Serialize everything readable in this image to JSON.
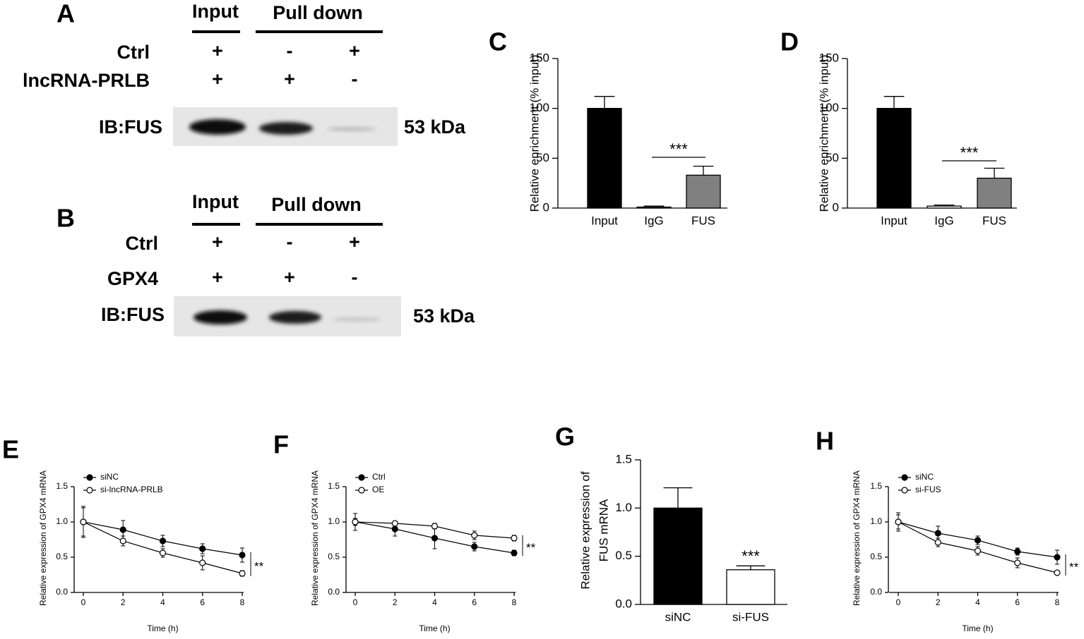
{
  "blots": [
    {
      "panel_label": "A",
      "input": "Input",
      "pull_down": "Pull down",
      "rows": [
        {
          "label": "Ctrl",
          "marks": [
            "+",
            "-",
            "+"
          ]
        },
        {
          "label": "lncRNA-PRLB",
          "marks": [
            "+",
            "+",
            "-"
          ]
        }
      ],
      "antibody": "IB:FUS",
      "size": "53 kDa"
    },
    {
      "panel_label": "B",
      "input": "Input",
      "pull_down": "Pull down",
      "rows": [
        {
          "label": "Ctrl",
          "marks": [
            "+",
            "-",
            "+"
          ]
        },
        {
          "label": "GPX4",
          "marks": [
            "+",
            "+",
            "-"
          ]
        }
      ],
      "antibody": "IB:FUS",
      "size": "53 kDa"
    }
  ],
  "chart_data": [
    {
      "type": "bar",
      "panel_label": "C",
      "ylabel": "Relative enrichment (% input)",
      "categories": [
        "Input",
        "IgG",
        "FUS"
      ],
      "values": [
        100,
        1,
        33
      ],
      "errors": [
        12,
        1,
        9
      ],
      "colors": [
        "#000000",
        "#ffffff",
        "#808080"
      ],
      "ylim": [
        0,
        150
      ],
      "yticks": [
        0,
        50,
        100,
        150
      ],
      "annotation": "***"
    },
    {
      "type": "bar",
      "panel_label": "D",
      "ylabel": "Relative enrichment (% input)",
      "categories": [
        "Input",
        "IgG",
        "FUS"
      ],
      "values": [
        100,
        2,
        30
      ],
      "errors": [
        12,
        1,
        10
      ],
      "colors": [
        "#000000",
        "#ffffff",
        "#808080"
      ],
      "ylim": [
        0,
        150
      ],
      "yticks": [
        0,
        50,
        100,
        150
      ],
      "annotation": "***"
    },
    {
      "type": "line",
      "panel_label": "E",
      "ylabel": "Relative expression of GPX4 mRNA",
      "xlabel": "Time (h)",
      "x": [
        0,
        2,
        4,
        6,
        8
      ],
      "xlim": [
        0,
        8
      ],
      "xticks": [
        0,
        2,
        4,
        6,
        8
      ],
      "ylim": [
        0,
        1.5
      ],
      "yticks": [
        {
          "value": 0,
          "label": "0.0"
        },
        0.5,
        {
          "value": 1,
          "label": "1.0"
        },
        1.5
      ],
      "series": [
        {
          "name": "siNC",
          "color": "#000000",
          "marker": "filled",
          "values": [
            1.0,
            0.89,
            0.73,
            0.62,
            0.53
          ],
          "errors": [
            0.22,
            0.13,
            0.08,
            0.07,
            0.1
          ]
        },
        {
          "name": "si-lncRNA-PRLB",
          "color": "#000000",
          "marker": "open",
          "values": [
            1.0,
            0.73,
            0.56,
            0.42,
            0.27
          ],
          "errors": [
            0.2,
            0.07,
            0.06,
            0.1,
            0.04
          ]
        }
      ],
      "annotation": "**"
    },
    {
      "type": "line",
      "panel_label": "F",
      "ylabel": "Relative expression of GPX4 mRNA",
      "xlabel": "Time (h)",
      "x": [
        0,
        2,
        4,
        6,
        8
      ],
      "xlim": [
        0,
        8
      ],
      "xticks": [
        0,
        2,
        4,
        6,
        8
      ],
      "ylim": [
        0,
        1.5
      ],
      "yticks": [
        {
          "value": 0,
          "label": "0.0"
        },
        0.5,
        {
          "value": 1,
          "label": "1.0"
        },
        1.5
      ],
      "series": [
        {
          "name": "Ctrl",
          "color": "#000000",
          "marker": "filled",
          "values": [
            1.0,
            0.9,
            0.77,
            0.65,
            0.56
          ],
          "errors": [
            0.12,
            0.1,
            0.15,
            0.06,
            0.04
          ]
        },
        {
          "name": "OE",
          "color": "#000000",
          "marker": "open",
          "values": [
            1.0,
            0.98,
            0.94,
            0.81,
            0.77
          ],
          "errors": [
            0.05,
            0.03,
            0.04,
            0.06,
            0.04
          ]
        }
      ],
      "annotation": "**"
    },
    {
      "type": "bar",
      "panel_label": "G",
      "ylabel_lines": [
        "Relative expression of",
        "FUS mRNA"
      ],
      "categories": [
        "siNC",
        "si-FUS"
      ],
      "values": [
        1.0,
        0.36
      ],
      "errors": [
        0.21,
        0.04
      ],
      "colors": [
        "#000000",
        "#ffffff"
      ],
      "ylim": [
        0,
        1.5
      ],
      "yticks": [
        {
          "value": 0,
          "label": "0.0"
        },
        0.5,
        {
          "value": 1,
          "label": "1.0"
        },
        1.5
      ],
      "annotation": "***"
    },
    {
      "type": "line",
      "panel_label": "H",
      "ylabel": "Relative expression of GPX4 mRNA",
      "xlabel": "Time (h)",
      "x": [
        0,
        2,
        4,
        6,
        8
      ],
      "xlim": [
        0,
        8
      ],
      "xticks": [
        0,
        2,
        4,
        6,
        8
      ],
      "ylim": [
        0,
        1.5
      ],
      "yticks": [
        {
          "value": 0,
          "label": "0.0"
        },
        0.5,
        {
          "value": 1,
          "label": "1.0"
        },
        1.5
      ],
      "series": [
        {
          "name": "siNC",
          "color": "#000000",
          "marker": "filled",
          "values": [
            1.0,
            0.84,
            0.74,
            0.58,
            0.5
          ],
          "errors": [
            0.13,
            0.1,
            0.06,
            0.05,
            0.1
          ]
        },
        {
          "name": "si-FUS",
          "color": "#000000",
          "marker": "open",
          "values": [
            1.0,
            0.71,
            0.59,
            0.42,
            0.28
          ],
          "errors": [
            0.1,
            0.06,
            0.06,
            0.07,
            0.03
          ]
        }
      ],
      "annotation": "**"
    }
  ]
}
